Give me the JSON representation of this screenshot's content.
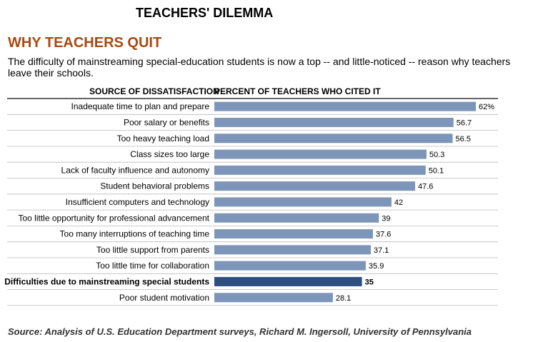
{
  "header": {
    "title": "TEACHERS' DILEMMA",
    "subtitle": "WHY TEACHERS QUIT",
    "intro": "The difficulty of mainstreaming special-education students is now a top -- and little-noticed -- reason why teachers leave their schools."
  },
  "source": "Source: Analysis of U.S. Education Department surveys, Richard M. Ingersoll, University of Pennsylvania",
  "colors": {
    "bar": "#7d95b8",
    "bar_highlight": "#2c4f80",
    "subtitle": "#a64b12",
    "rule": "#bbbbbb"
  },
  "chart_data": {
    "type": "bar",
    "orientation": "horizontal",
    "column_headers": [
      "SOURCE OF DISSATISFACTION",
      "PERCENT OF TEACHERS WHO CITED IT"
    ],
    "categories": [
      "Inadequate time to plan and prepare",
      "Poor salary or benefits",
      "Too heavy teaching load",
      "Class sizes too large",
      "Lack of faculty influence and autonomy",
      "Student behavioral problems",
      "Insufficient computers and technology",
      "Too little opportunity for professional advancement",
      "Too many interruptions of teaching time",
      "Too little support from parents",
      "Too little time for collaboration",
      "Difficulties due to mainstreaming special students",
      "Poor student motivation"
    ],
    "values": [
      62,
      56.7,
      56.5,
      50.3,
      50.1,
      47.6,
      42,
      39,
      37.6,
      37.1,
      35.9,
      35,
      28.1
    ],
    "value_labels": [
      "62%",
      "56.7",
      "56.5",
      "50.3",
      "50.1",
      "47.6",
      "42",
      "39",
      "37.6",
      "37.1",
      "35.9",
      "35",
      "28.1"
    ],
    "highlighted": "Difficulties due to mainstreaming special students",
    "xlim": [
      0,
      62
    ],
    "unit": "%"
  }
}
